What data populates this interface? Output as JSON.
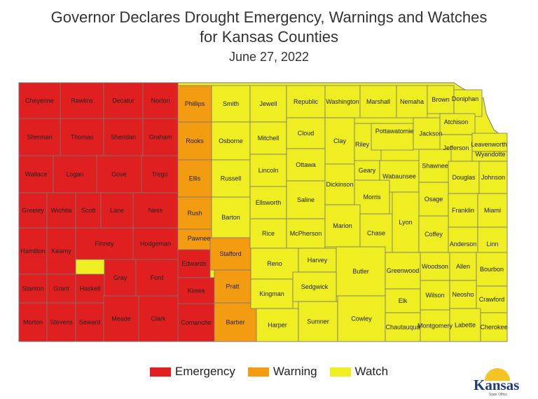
{
  "title_line1": "Governor Declares Drought Emergency, Warnings and Watches",
  "title_line2": "for Kansas Counties",
  "date": "June 27, 2022",
  "colors": {
    "Emergency": "#e02020",
    "Warning": "#f39c12",
    "Watch": "#eeee22",
    "border": "#777777"
  },
  "legend": [
    {
      "label": "Emergency",
      "color": "#e02020"
    },
    {
      "label": "Warning",
      "color": "#f39c12"
    },
    {
      "label": "Watch",
      "color": "#eeee22"
    }
  ],
  "logo": {
    "text": "Kansas",
    "subtext": "State Office"
  },
  "counties": [
    {
      "name": "Cheyenne",
      "status": "Emergency"
    },
    {
      "name": "Rawlins",
      "status": "Emergency"
    },
    {
      "name": "Decatur",
      "status": "Emergency"
    },
    {
      "name": "Norton",
      "status": "Emergency"
    },
    {
      "name": "Sherman",
      "status": "Emergency"
    },
    {
      "name": "Thomas",
      "status": "Emergency"
    },
    {
      "name": "Sheridan",
      "status": "Emergency"
    },
    {
      "name": "Graham",
      "status": "Emergency"
    },
    {
      "name": "Wallace",
      "status": "Emergency"
    },
    {
      "name": "Logan",
      "status": "Emergency"
    },
    {
      "name": "Gove",
      "status": "Emergency"
    },
    {
      "name": "Trego",
      "status": "Emergency"
    },
    {
      "name": "Greeley",
      "status": "Emergency"
    },
    {
      "name": "Wichita",
      "status": "Emergency"
    },
    {
      "name": "Scott",
      "status": "Emergency"
    },
    {
      "name": "Lane",
      "status": "Emergency"
    },
    {
      "name": "Ness",
      "status": "Emergency"
    },
    {
      "name": "Hamilton",
      "status": "Emergency"
    },
    {
      "name": "Kearny",
      "status": "Emergency"
    },
    {
      "name": "Finney",
      "status": "Emergency"
    },
    {
      "name": "Hodgeman",
      "status": "Emergency"
    },
    {
      "name": "Stanton",
      "status": "Emergency"
    },
    {
      "name": "Grant",
      "status": "Emergency"
    },
    {
      "name": "Haskell",
      "status": "Emergency"
    },
    {
      "name": "Gray",
      "status": "Emergency"
    },
    {
      "name": "Ford",
      "status": "Emergency"
    },
    {
      "name": "Edwards",
      "status": "Emergency"
    },
    {
      "name": "Kiowa",
      "status": "Emergency"
    },
    {
      "name": "Morton",
      "status": "Emergency"
    },
    {
      "name": "Stevens",
      "status": "Emergency"
    },
    {
      "name": "Seward",
      "status": "Emergency"
    },
    {
      "name": "Meade",
      "status": "Emergency"
    },
    {
      "name": "Clark",
      "status": "Emergency"
    },
    {
      "name": "Comanche",
      "status": "Emergency"
    },
    {
      "name": "Phillips",
      "status": "Warning"
    },
    {
      "name": "Rooks",
      "status": "Warning"
    },
    {
      "name": "Ellis",
      "status": "Warning"
    },
    {
      "name": "Rush",
      "status": "Warning"
    },
    {
      "name": "Pawnee",
      "status": "Warning"
    },
    {
      "name": "Stafford",
      "status": "Warning"
    },
    {
      "name": "Pratt",
      "status": "Warning"
    },
    {
      "name": "Barber",
      "status": "Warning"
    },
    {
      "name": "Smith",
      "status": "Watch"
    },
    {
      "name": "Jewell",
      "status": "Watch"
    },
    {
      "name": "Republic",
      "status": "Watch"
    },
    {
      "name": "Washington",
      "status": "Watch"
    },
    {
      "name": "Marshall",
      "status": "Watch"
    },
    {
      "name": "Nemaha",
      "status": "Watch"
    },
    {
      "name": "Brown",
      "status": "Watch"
    },
    {
      "name": "Doniphan",
      "status": "Watch"
    },
    {
      "name": "Osborne",
      "status": "Watch"
    },
    {
      "name": "Mitchell",
      "status": "Watch"
    },
    {
      "name": "Cloud",
      "status": "Watch"
    },
    {
      "name": "Clay",
      "status": "Watch"
    },
    {
      "name": "Riley",
      "status": "Watch"
    },
    {
      "name": "Pottawatomie",
      "status": "Watch"
    },
    {
      "name": "Jackson",
      "status": "Watch"
    },
    {
      "name": "Atchison",
      "status": "Watch"
    },
    {
      "name": "Jefferson",
      "status": "Watch"
    },
    {
      "name": "Leavenworth",
      "status": "Watch"
    },
    {
      "name": "Wyandotte",
      "status": "Watch"
    },
    {
      "name": "Russell",
      "status": "Watch"
    },
    {
      "name": "Lincoln",
      "status": "Watch"
    },
    {
      "name": "Ottawa",
      "status": "Watch"
    },
    {
      "name": "Geary",
      "status": "Watch"
    },
    {
      "name": "Wabaunsee",
      "status": "Watch"
    },
    {
      "name": "Shawnee",
      "status": "Watch"
    },
    {
      "name": "Douglas",
      "status": "Watch"
    },
    {
      "name": "Johnson",
      "status": "Watch"
    },
    {
      "name": "Ellsworth",
      "status": "Watch"
    },
    {
      "name": "Saline",
      "status": "Watch"
    },
    {
      "name": "Dickinson",
      "status": "Watch"
    },
    {
      "name": "Morris",
      "status": "Watch"
    },
    {
      "name": "Osage",
      "status": "Watch"
    },
    {
      "name": "Franklin",
      "status": "Watch"
    },
    {
      "name": "Miami",
      "status": "Watch"
    },
    {
      "name": "Barton",
      "status": "Watch"
    },
    {
      "name": "Rice",
      "status": "Watch"
    },
    {
      "name": "McPherson",
      "status": "Watch"
    },
    {
      "name": "Marion",
      "status": "Watch"
    },
    {
      "name": "Chase",
      "status": "Watch"
    },
    {
      "name": "Lyon",
      "status": "Watch"
    },
    {
      "name": "Coffey",
      "status": "Watch"
    },
    {
      "name": "Anderson",
      "status": "Watch"
    },
    {
      "name": "Linn",
      "status": "Watch"
    },
    {
      "name": "Reno",
      "status": "Watch"
    },
    {
      "name": "Harvey",
      "status": "Watch"
    },
    {
      "name": "Butler",
      "status": "Watch"
    },
    {
      "name": "Greenwood",
      "status": "Watch"
    },
    {
      "name": "Woodson",
      "status": "Watch"
    },
    {
      "name": "Allen",
      "status": "Watch"
    },
    {
      "name": "Bourbon",
      "status": "Watch"
    },
    {
      "name": "Kingman",
      "status": "Watch"
    },
    {
      "name": "Sedgwick",
      "status": "Watch"
    },
    {
      "name": "Elk",
      "status": "Watch"
    },
    {
      "name": "Wilson",
      "status": "Watch"
    },
    {
      "name": "Neosho",
      "status": "Watch"
    },
    {
      "name": "Crawford",
      "status": "Watch"
    },
    {
      "name": "Harper",
      "status": "Watch"
    },
    {
      "name": "Sumner",
      "status": "Watch"
    },
    {
      "name": "Cowley",
      "status": "Watch"
    },
    {
      "name": "Chautauqua",
      "status": "Watch"
    },
    {
      "name": "Montgomery",
      "status": "Watch"
    },
    {
      "name": "Labette",
      "status": "Watch"
    },
    {
      "name": "Cherokee",
      "status": "Watch"
    }
  ]
}
